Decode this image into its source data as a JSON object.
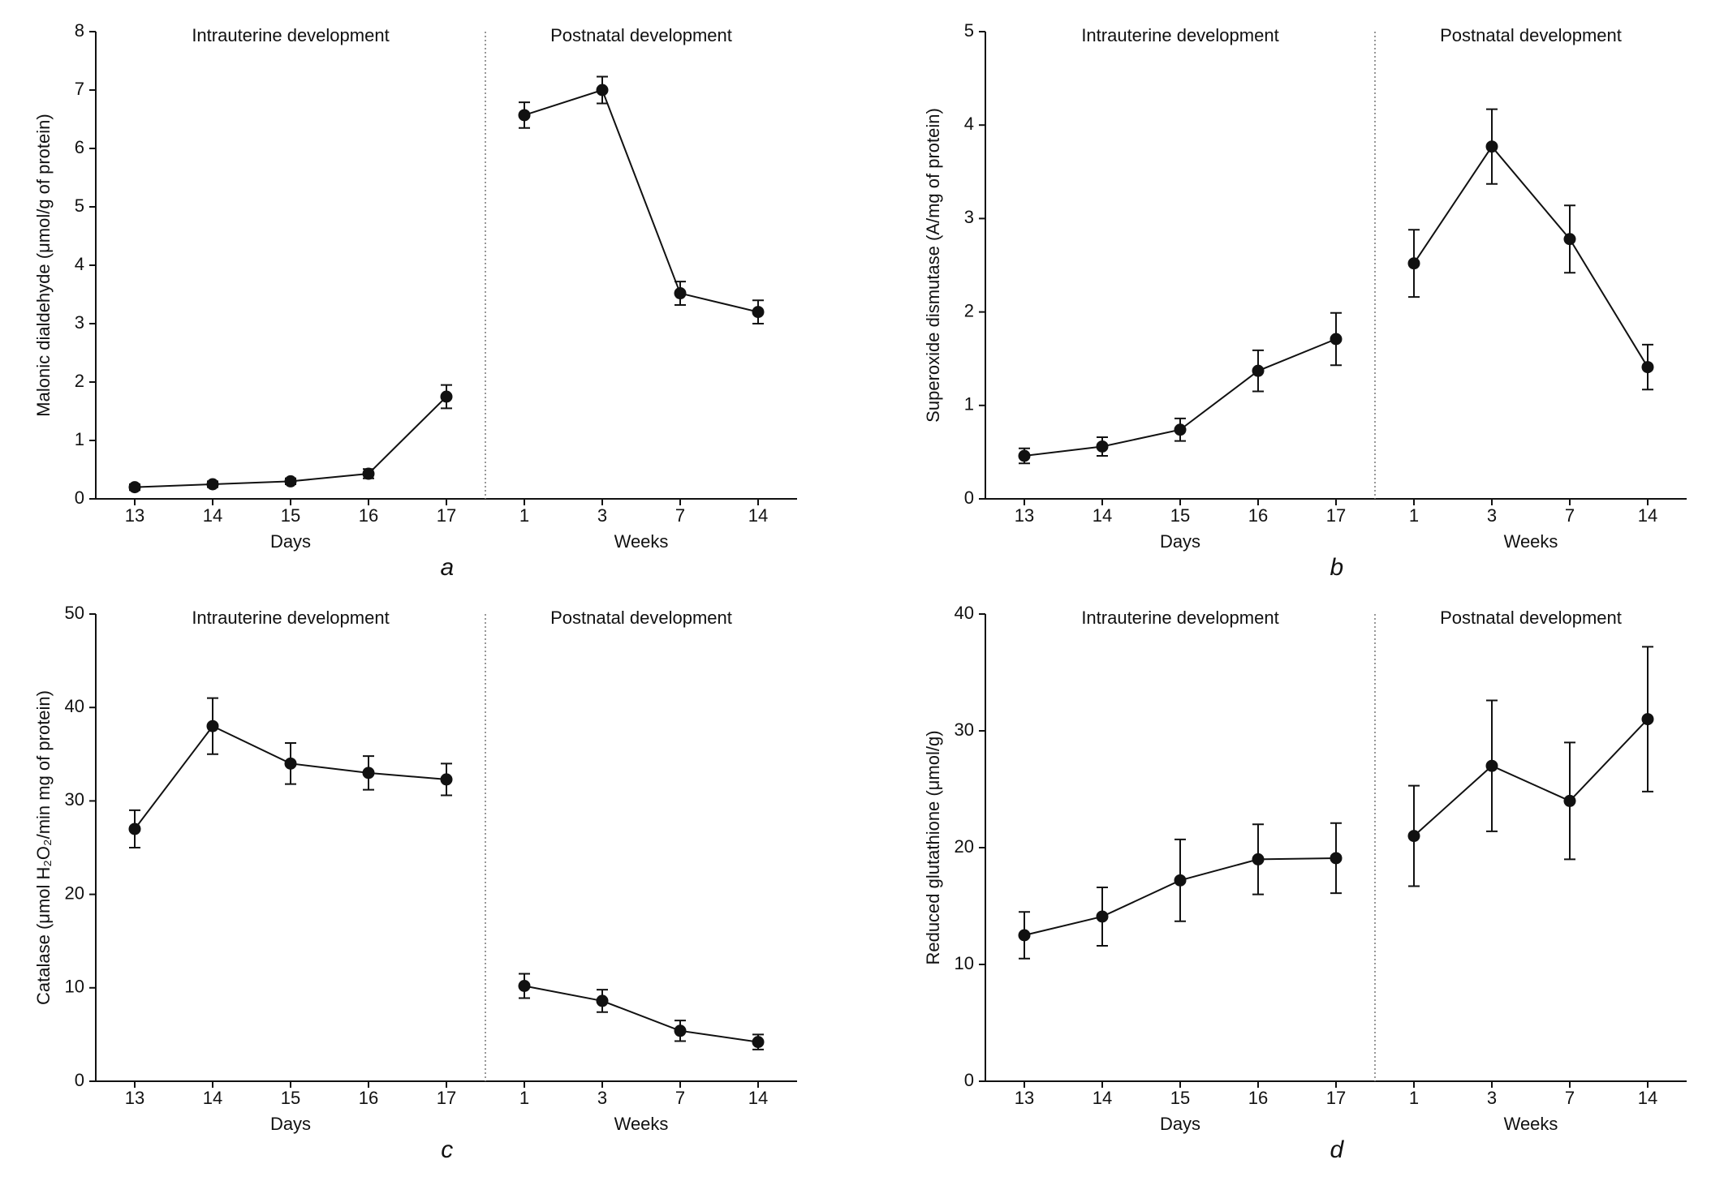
{
  "chart_data": [
    {
      "type": "line",
      "y_label": "Malonic dialdehyde (μmol/g of protein)",
      "caption": "a",
      "ylim": [
        0,
        8
      ],
      "yticks": [
        0,
        1,
        2,
        3,
        4,
        5,
        6,
        7,
        8
      ],
      "color": "#111111",
      "sections": [
        {
          "title": "Intrauterine development",
          "x_label": "Days",
          "categories": [
            "13",
            "14",
            "15",
            "16",
            "17"
          ],
          "values": [
            0.2,
            0.25,
            0.3,
            0.43,
            1.75
          ],
          "errors": [
            0.05,
            0.05,
            0.05,
            0.08,
            0.2
          ]
        },
        {
          "title": "Postnatal development",
          "x_label": "Weeks",
          "categories": [
            "1",
            "3",
            "7",
            "14"
          ],
          "values": [
            6.57,
            7.0,
            3.52,
            3.2
          ],
          "errors": [
            0.22,
            0.23,
            0.2,
            0.2
          ]
        }
      ]
    },
    {
      "type": "line",
      "y_label": "Superoxide dismutase (A/mg of protein)",
      "caption": "b",
      "ylim": [
        0,
        5
      ],
      "yticks": [
        0,
        1,
        2,
        3,
        4,
        5
      ],
      "color": "#111111",
      "sections": [
        {
          "title": "Intrauterine development",
          "x_label": "Days",
          "categories": [
            "13",
            "14",
            "15",
            "16",
            "17"
          ],
          "values": [
            0.46,
            0.56,
            0.74,
            1.37,
            1.71
          ],
          "errors": [
            0.08,
            0.1,
            0.12,
            0.22,
            0.28
          ]
        },
        {
          "title": "Postnatal development",
          "x_label": "Weeks",
          "categories": [
            "1",
            "3",
            "7",
            "14"
          ],
          "values": [
            2.52,
            3.77,
            2.78,
            1.41
          ],
          "errors": [
            0.36,
            0.4,
            0.36,
            0.24
          ]
        }
      ]
    },
    {
      "type": "line",
      "y_label": "Catalase (μmol H₂O₂/min mg of protein)",
      "caption": "c",
      "ylim": [
        0,
        50
      ],
      "yticks": [
        0,
        10,
        20,
        30,
        40,
        50
      ],
      "color": "#111111",
      "sections": [
        {
          "title": "Intrauterine development",
          "x_label": "Days",
          "categories": [
            "13",
            "14",
            "15",
            "16",
            "17"
          ],
          "values": [
            27,
            38,
            34,
            33,
            32.3
          ],
          "errors": [
            2,
            3,
            2.2,
            1.8,
            1.7
          ]
        },
        {
          "title": "Postnatal development",
          "x_label": "Weeks",
          "categories": [
            "1",
            "3",
            "7",
            "14"
          ],
          "values": [
            10.2,
            8.6,
            5.4,
            4.2
          ],
          "errors": [
            1.3,
            1.2,
            1.1,
            0.8
          ]
        }
      ]
    },
    {
      "type": "line",
      "y_label": "Reduced glutathione (μmol/g)",
      "caption": "d",
      "ylim": [
        0,
        40
      ],
      "yticks": [
        0,
        10,
        20,
        30,
        40
      ],
      "color": "#111111",
      "sections": [
        {
          "title": "Intrauterine development",
          "x_label": "Days",
          "categories": [
            "13",
            "14",
            "15",
            "16",
            "17"
          ],
          "values": [
            12.5,
            14.1,
            17.2,
            19,
            19.1
          ],
          "errors": [
            2,
            2.5,
            3.5,
            3,
            3
          ]
        },
        {
          "title": "Postnatal development",
          "x_label": "Weeks",
          "categories": [
            "1",
            "3",
            "7",
            "14"
          ],
          "values": [
            21,
            27,
            24,
            31
          ],
          "errors": [
            4.3,
            5.6,
            5,
            6.2
          ]
        }
      ]
    }
  ]
}
